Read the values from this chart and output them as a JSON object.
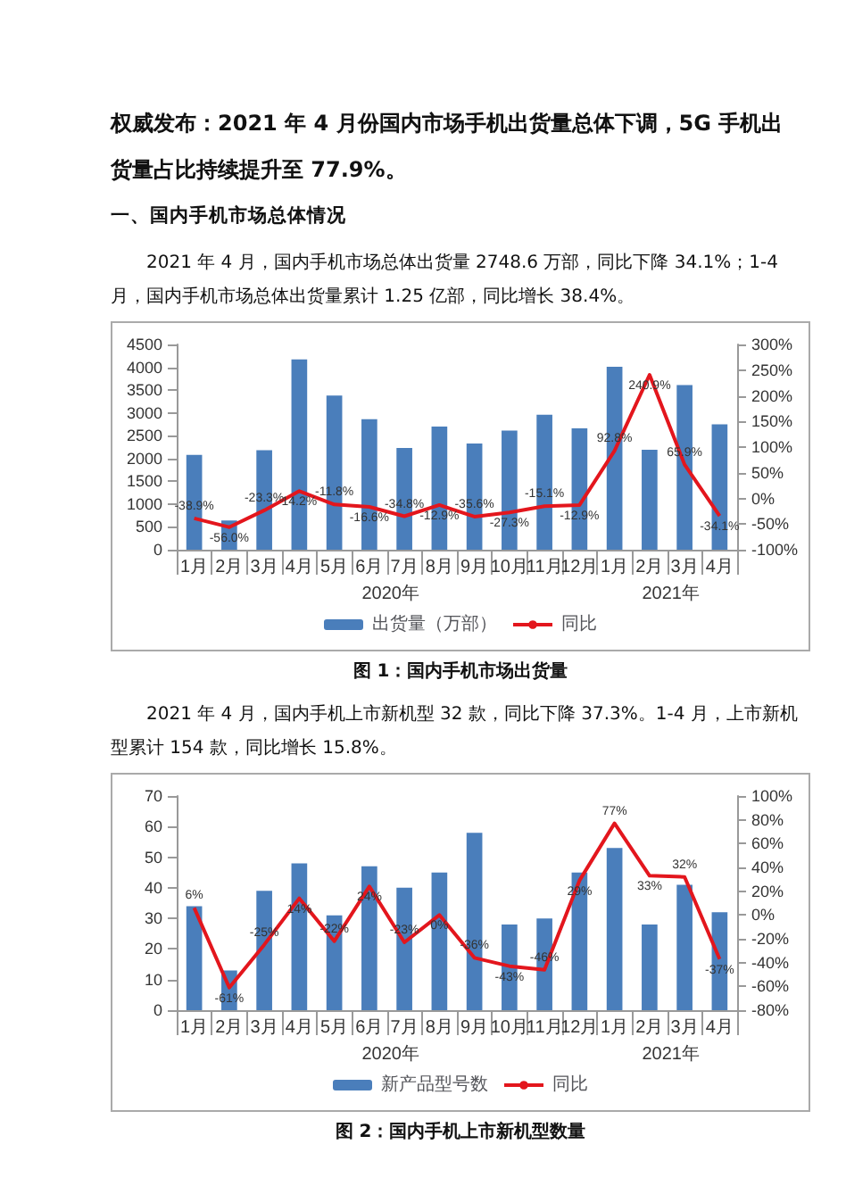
{
  "chart_data": [
    {
      "type": "bar",
      "title": "权威发布：2021 年 4 月份国内市场手机出货量总体下调，5G 手机出货量占比持续提升至 77.9%。",
      "subtitle": "一、国内手机市场总体情况",
      "annotations": [
        "2021 年 4 月，国内手机市场总体出货量 2748.6 万部，同比下降 34.1%；1-4 月，国内手机市场总体出货量累计 1.25 亿部，同比增长 38.4%。",
        "2020年",
        "2021年",
        "图 1：国内手机市场出货量"
      ],
      "categories": [
        "1月",
        "2月",
        "3月",
        "4月",
        "5月",
        "6月",
        "7月",
        "8月",
        "9月",
        "10月",
        "11月",
        "12月",
        "1月",
        "2月",
        "3月",
        "4月"
      ],
      "series": [
        {
          "name": "出货量（万部）",
          "color": "#4a7ebb",
          "values": [
            2080,
            640,
            2180,
            4170,
            3380,
            2860,
            2230,
            2700,
            2330,
            2610,
            2960,
            2660,
            4010,
            2190,
            3610,
            2748.6
          ]
        },
        {
          "name": "同比",
          "type": "line",
          "axis": "y2",
          "color": "#e3161d",
          "values": [
            -38.9,
            -56.0,
            -23.3,
            14.2,
            -11.8,
            -16.6,
            -34.8,
            -12.9,
            -35.6,
            -27.3,
            -15.1,
            -12.9,
            92.8,
            240.9,
            65.9,
            -34.1
          ],
          "value_labels": [
            "-38.9%",
            "-56.0%",
            "-23.3%",
            "14.2%",
            "-11.8%",
            "-16.6%",
            "-34.8%",
            "-12.9%",
            "-35.6%",
            "-27.3%",
            "-15.1%",
            "-12.9%",
            "92.8%",
            "240.9%",
            "65.9%",
            "-34.1%"
          ]
        }
      ],
      "ylim": [
        0,
        4500
      ],
      "yticks": [
        0,
        500,
        1000,
        1500,
        2000,
        2500,
        3000,
        3500,
        4000,
        4500
      ],
      "y2lim": [
        -100,
        300
      ],
      "y2ticks": [
        {
          "value": -100,
          "label": "-100%"
        },
        {
          "value": -50,
          "label": "-50%"
        },
        {
          "value": 0,
          "label": "0%"
        },
        {
          "value": 50,
          "label": "50%"
        },
        {
          "value": 100,
          "label": "100%"
        },
        {
          "value": 150,
          "label": "150%"
        },
        {
          "value": 200,
          "label": "200%"
        },
        {
          "value": 250,
          "label": "250%"
        },
        {
          "value": 300,
          "label": "300%"
        }
      ],
      "legend": "bottom",
      "grid": false,
      "marker": "none"
    },
    {
      "type": "bar",
      "annotations": [
        "2021 年 4 月，国内手机上市新机型 32 款，同比下降 37.3%。1-4 月，上市新机型累计 154 款，同比增长 15.8%。",
        "2020年",
        "2021年",
        "图 2：国内手机上市新机型数量"
      ],
      "categories": [
        "1月",
        "2月",
        "3月",
        "4月",
        "5月",
        "6月",
        "7月",
        "8月",
        "9月",
        "10月",
        "11月",
        "12月",
        "1月",
        "2月",
        "3月",
        "4月"
      ],
      "series": [
        {
          "name": "新产品型号数",
          "color": "#4a7ebb",
          "values": [
            34,
            13,
            39,
            48,
            31,
            47,
            40,
            45,
            58,
            28,
            30,
            45,
            53,
            28,
            41,
            32
          ]
        },
        {
          "name": "同比",
          "type": "line",
          "axis": "y2",
          "color": "#e3161d",
          "values": [
            6,
            -61,
            -25,
            14,
            -22,
            24,
            -23,
            0,
            -36,
            -43,
            -46,
            29,
            77,
            33,
            32,
            -37
          ],
          "value_labels": [
            "6%",
            "-61%",
            "-25%",
            "14%",
            "-22%",
            "24%",
            "-23%",
            "0%",
            "-36%",
            "-43%",
            "-46%",
            "29%",
            "77%",
            "33%",
            "32%",
            "-37%"
          ]
        }
      ],
      "ylim": [
        0,
        70
      ],
      "yticks": [
        0,
        10,
        20,
        30,
        40,
        50,
        60,
        70
      ],
      "y2lim": [
        -80,
        100
      ],
      "y2ticks": [
        {
          "value": -80,
          "label": "-80%"
        },
        {
          "value": -60,
          "label": "-60%"
        },
        {
          "value": -40,
          "label": "-40%"
        },
        {
          "value": -20,
          "label": "-20%"
        },
        {
          "value": 0,
          "label": "0%"
        },
        {
          "value": 20,
          "label": "20%"
        },
        {
          "value": 40,
          "label": "40%"
        },
        {
          "value": 60,
          "label": "60%"
        },
        {
          "value": 80,
          "label": "80%"
        },
        {
          "value": 100,
          "label": "100%"
        }
      ],
      "legend": "bottom",
      "grid": false,
      "marker": "none"
    }
  ]
}
